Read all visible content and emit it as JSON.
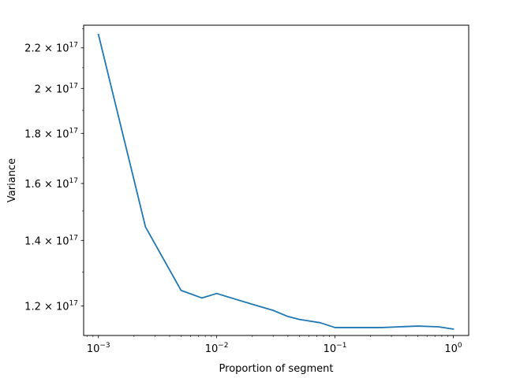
{
  "chart_data": {
    "type": "line",
    "xlabel": "Proportion of segment",
    "ylabel": "Variance",
    "xscale": "log",
    "yscale": "log",
    "xlim": [
      0.00075,
      1.35
    ],
    "ylim": [
      1.12e+17,
      2.32e+17
    ],
    "grid": false,
    "line_color": "#1f77b4",
    "x_ticks": [
      {
        "value": 0.001,
        "base": "10",
        "exp": "−3"
      },
      {
        "value": 0.01,
        "base": "10",
        "exp": "−2"
      },
      {
        "value": 0.1,
        "base": "10",
        "exp": "−1"
      },
      {
        "value": 1,
        "base": "10",
        "exp": "0"
      }
    ],
    "y_ticks": [
      {
        "value": 1.2e+17,
        "mantissa": "1.2 × 10",
        "exp": "17"
      },
      {
        "value": 1.4e+17,
        "mantissa": "1.4 × 10",
        "exp": "17"
      },
      {
        "value": 1.6e+17,
        "mantissa": "1.6 × 10",
        "exp": "17"
      },
      {
        "value": 1.8e+17,
        "mantissa": "1.8 × 10",
        "exp": "17"
      },
      {
        "value": 2e+17,
        "mantissa": "2 × 10",
        "exp": "17"
      },
      {
        "value": 2.2e+17,
        "mantissa": "2.2 × 10",
        "exp": "17"
      }
    ],
    "series": [
      {
        "x": [
          0.001,
          0.0025,
          0.005,
          0.0075,
          0.01,
          0.02,
          0.03,
          0.04,
          0.05,
          0.075,
          0.1,
          0.25,
          0.5,
          0.75,
          1.0
        ],
        "y": [
          2.27e+17,
          1.445e+17,
          1.245e+17,
          1.223e+17,
          1.236e+17,
          1.205e+17,
          1.188e+17,
          1.171e+17,
          1.163e+17,
          1.154e+17,
          1.141e+17,
          1.141e+17,
          1.145e+17,
          1.143e+17,
          1.137e+17
        ]
      }
    ]
  }
}
